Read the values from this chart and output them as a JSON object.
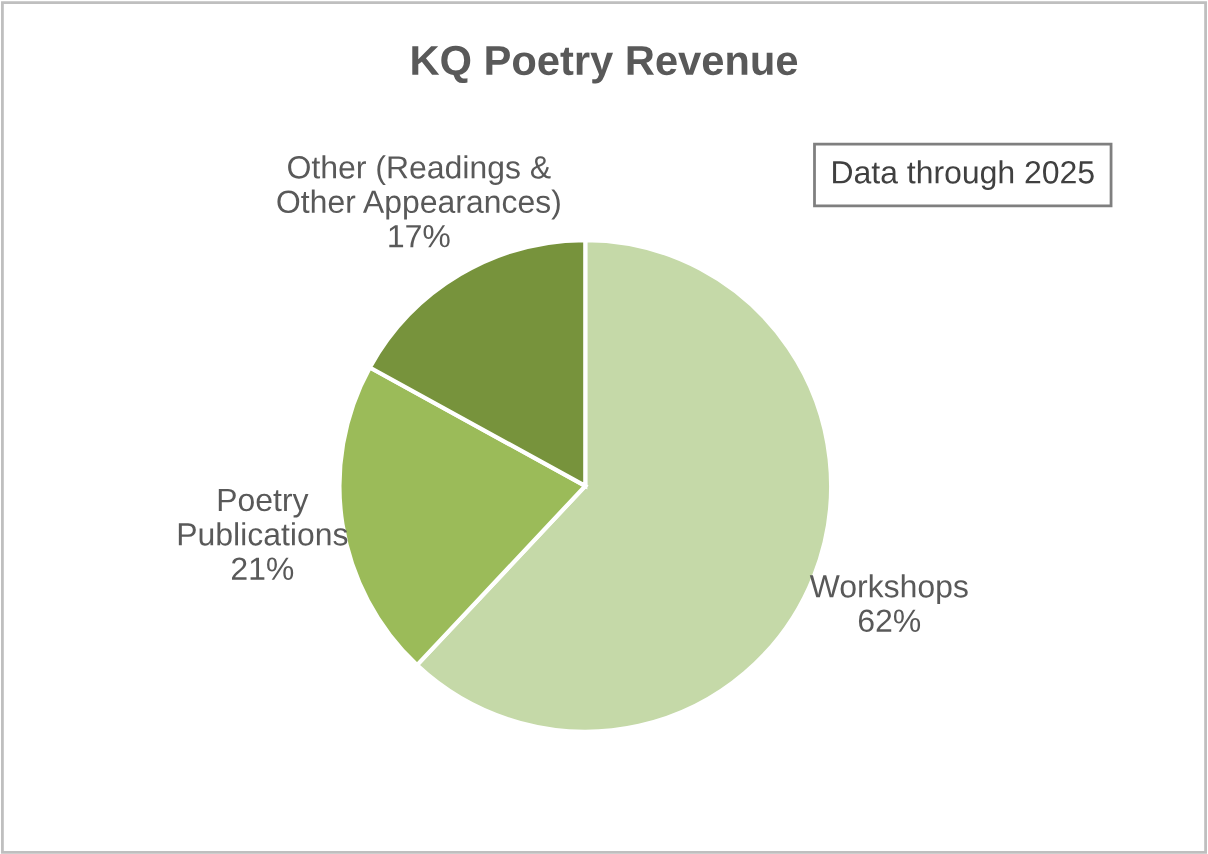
{
  "chart_data": {
    "type": "pie",
    "title": "KQ Poetry Revenue",
    "categories": [
      "Workshops",
      "Poetry\nPublications",
      "Other (Readings &\nOther Appearances)"
    ],
    "values": [
      62,
      21,
      17
    ],
    "value_labels": [
      "62%",
      "21%",
      "17%"
    ],
    "colors": [
      "#c5d9a8",
      "#9bbb59",
      "#77933c"
    ],
    "annotations": [
      "Data through 2025"
    ],
    "legend": false
  }
}
